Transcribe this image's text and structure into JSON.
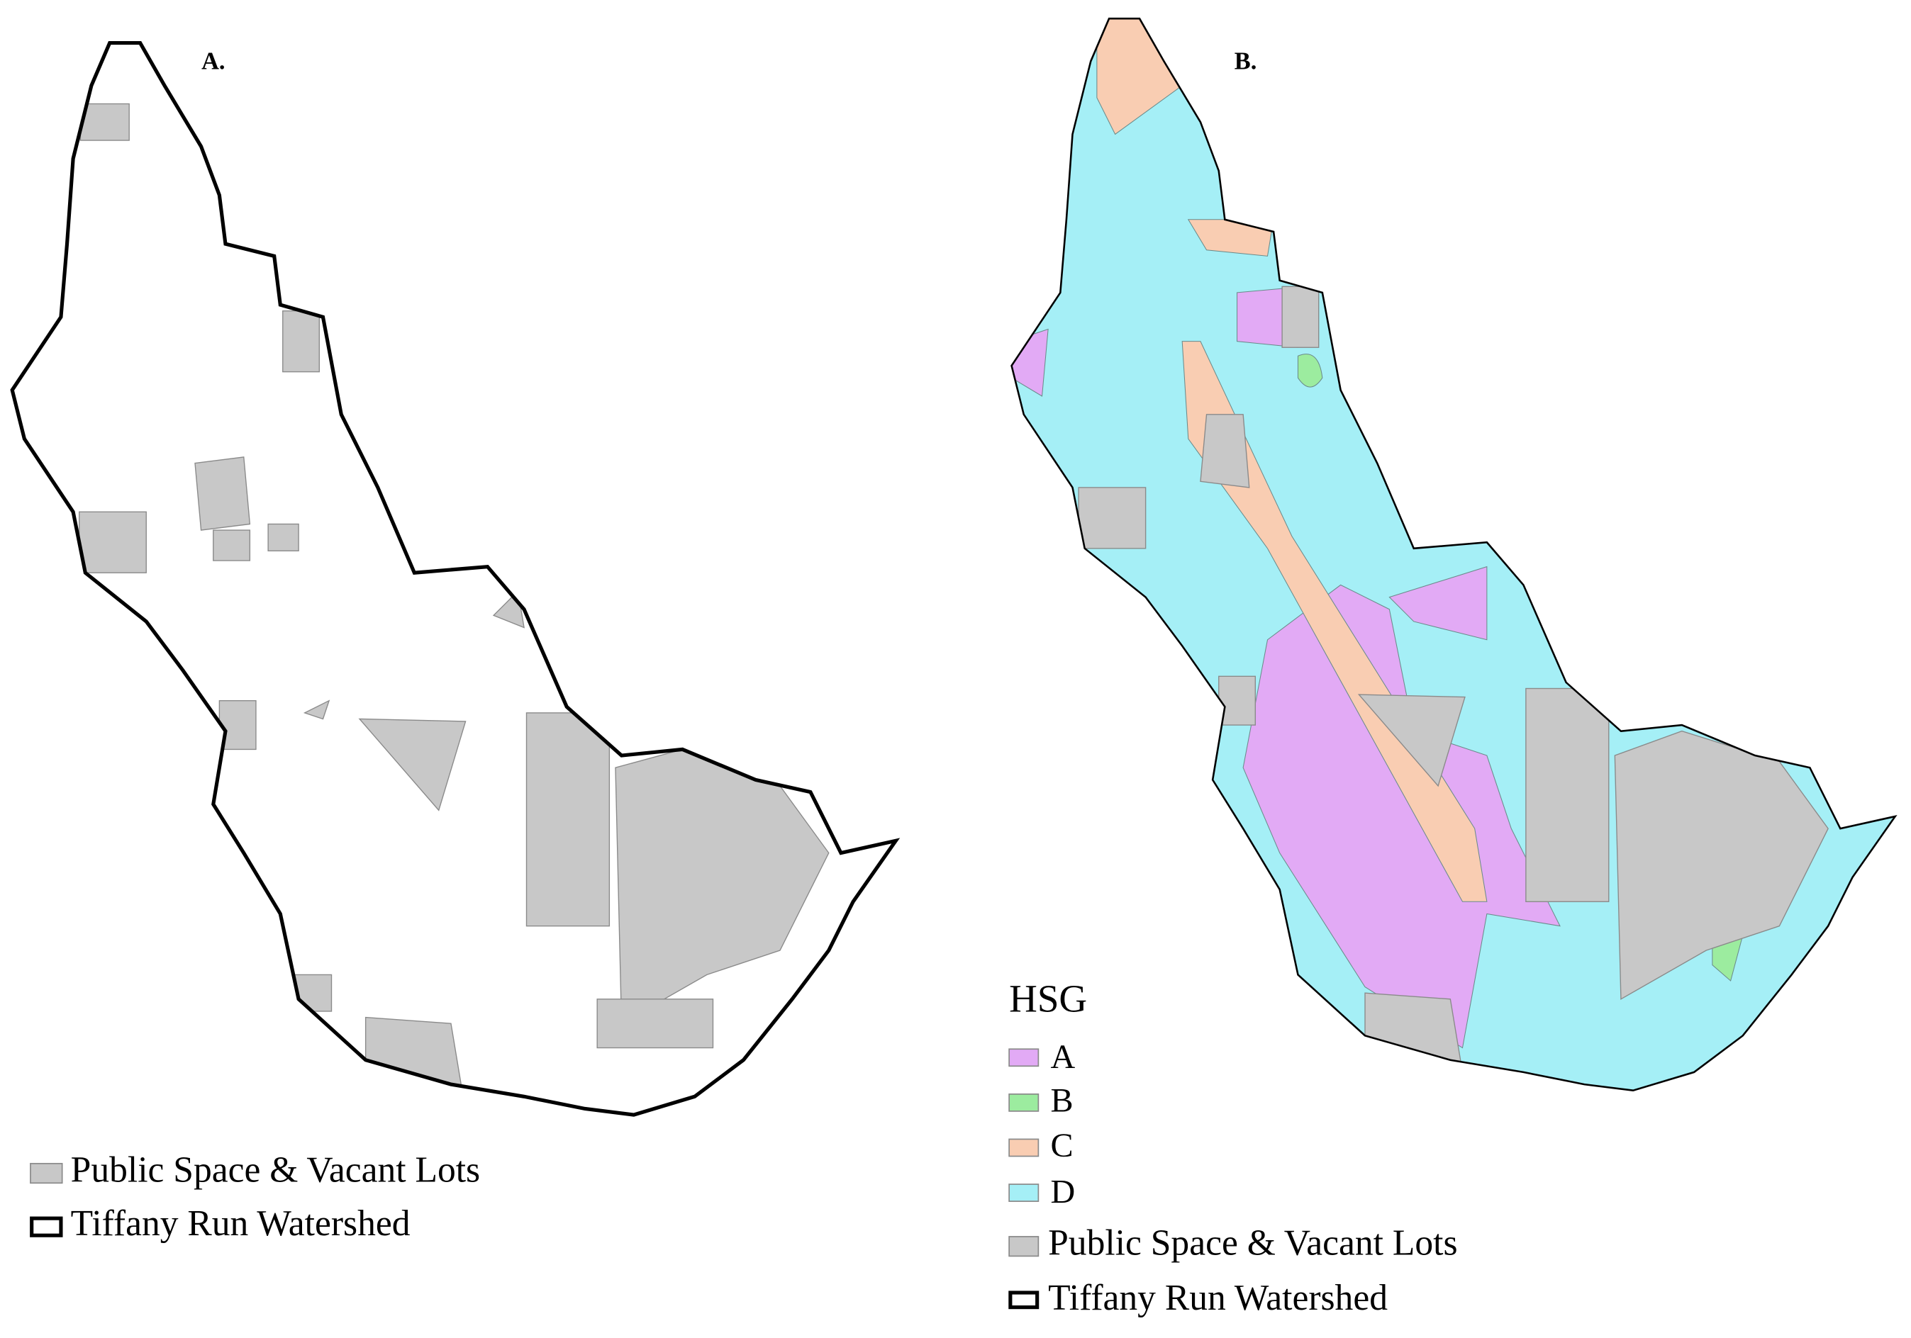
{
  "panels": [
    {
      "label": "A.",
      "legend": [
        {
          "label": "Public Space & Vacant Lots",
          "color": "#c8c8c8"
        },
        {
          "label": "Tiffany Run Watershed"
        }
      ]
    },
    {
      "label": "B.",
      "legend_title": "HSG",
      "legend": [
        {
          "label": "A",
          "color": "#e2aaf5"
        },
        {
          "label": "B",
          "color": "#9cec9f"
        },
        {
          "label": "C",
          "color": "#f9cdb2"
        },
        {
          "label": "D",
          "color": "#a5eff6"
        },
        {
          "label": "Public Space & Vacant Lots",
          "color": "#c8c8c8"
        },
        {
          "label": "Tiffany Run Watershed"
        }
      ]
    }
  ]
}
